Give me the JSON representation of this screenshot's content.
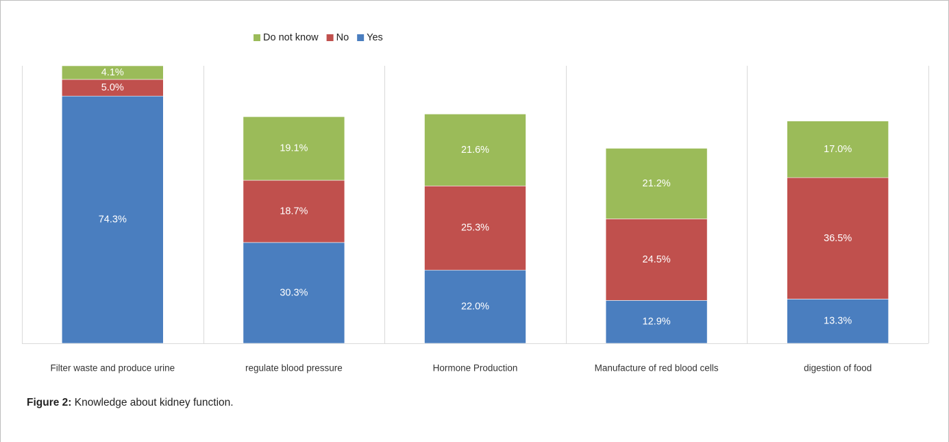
{
  "caption": {
    "label": "Figure 2:",
    "text": " Knowledge about kidney function."
  },
  "colors": {
    "yes": "#4a7ebf",
    "no": "#c0504d",
    "do_not_know": "#9bbb59",
    "gridline": "#d9d9d9",
    "label_text": "#ffffff",
    "category_text": "#333333"
  },
  "chart_data": {
    "type": "bar",
    "stacked": true,
    "categories": [
      "Filter waste  and  produce urine",
      "regulate blood pressure",
      "Hormone Production",
      "Manufacture of red blood cells",
      "digestion of food"
    ],
    "series": [
      {
        "name": "Yes",
        "values": [
          74.3,
          30.3,
          22.0,
          12.9,
          13.3
        ],
        "labels": [
          "74.3%",
          "30.3%",
          "22.0%",
          "12.9%",
          "13.3%"
        ],
        "color": "#4a7ebf"
      },
      {
        "name": "No",
        "values": [
          5.0,
          18.7,
          25.3,
          24.5,
          36.5
        ],
        "labels": [
          "5.0%",
          "18.7%",
          "25.3%",
          "24.5%",
          "36.5%"
        ],
        "color": "#c0504d"
      },
      {
        "name": "Do not know",
        "values": [
          4.1,
          19.1,
          21.6,
          21.2,
          17.0
        ],
        "labels": [
          "4.1%",
          "19.1%",
          "21.6%",
          "21.2%",
          "17.0%"
        ],
        "color": "#9bbb59"
      }
    ],
    "legend": {
      "position": "top-center",
      "order": [
        "Do not know",
        "No",
        "Yes"
      ]
    },
    "title": "",
    "xlabel": "",
    "ylabel": "",
    "ylim": [
      0,
      83.4
    ],
    "y_axis_visible": false,
    "grid": "vertical category separators"
  }
}
